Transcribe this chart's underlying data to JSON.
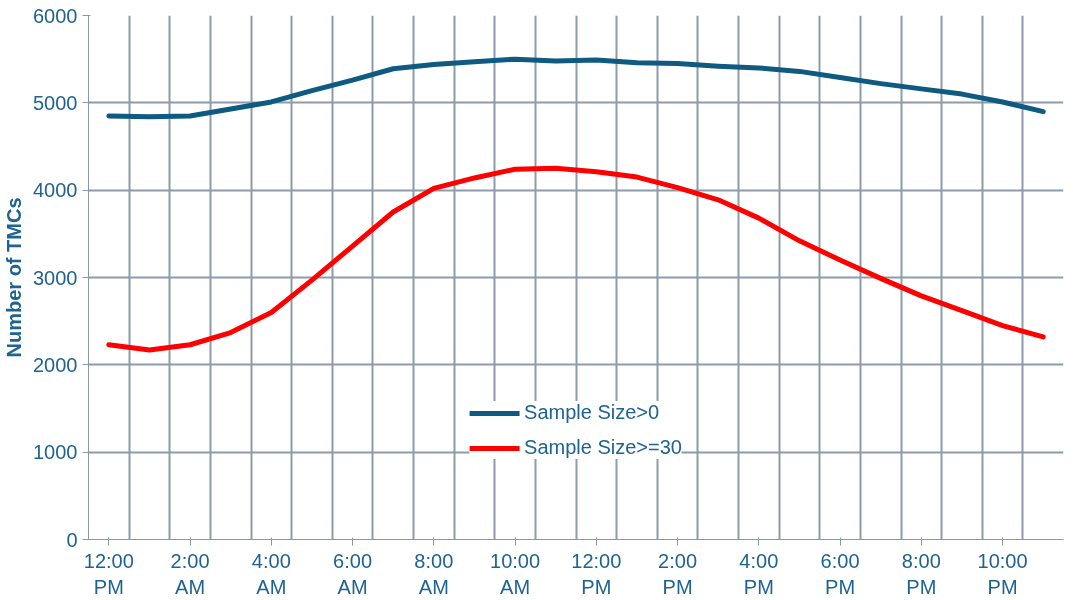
{
  "chart_data": {
    "type": "line",
    "ylabel": "Number of TMCs",
    "categories": [
      "12:00\nPM",
      null,
      "2:00\nAM",
      null,
      "4:00\nAM",
      null,
      "6:00\nAM",
      null,
      "8:00\nAM",
      null,
      "10:00\nAM",
      null,
      "12:00\nPM",
      null,
      "2:00\nPM",
      null,
      "4:00\nPM",
      null,
      "6:00\nPM",
      null,
      "8:00\nPM",
      null,
      "10:00\nPM",
      null
    ],
    "series": [
      {
        "name": "Sample Size>0",
        "color": "#0e5a80",
        "values": [
          4850,
          4840,
          4850,
          4930,
          5010,
          5140,
          5260,
          5390,
          5440,
          5470,
          5500,
          5480,
          5490,
          5460,
          5450,
          5420,
          5400,
          5360,
          5290,
          5220,
          5160,
          5100,
          5010,
          4900
        ]
      },
      {
        "name": "Sample Size>=30",
        "color": "#ff0000",
        "values": [
          2230,
          2170,
          2230,
          2370,
          2600,
          2970,
          3360,
          3750,
          4020,
          4140,
          4240,
          4250,
          4210,
          4150,
          4030,
          3890,
          3680,
          3420,
          3200,
          2990,
          2790,
          2620,
          2450,
          2320
        ]
      }
    ],
    "ylim": [
      0,
      6000
    ],
    "yticks": [
      0,
      1000,
      2000,
      3000,
      4000,
      5000,
      6000
    ],
    "grid": true,
    "legend": "bottom",
    "marker": "none",
    "line_style": "solid"
  }
}
